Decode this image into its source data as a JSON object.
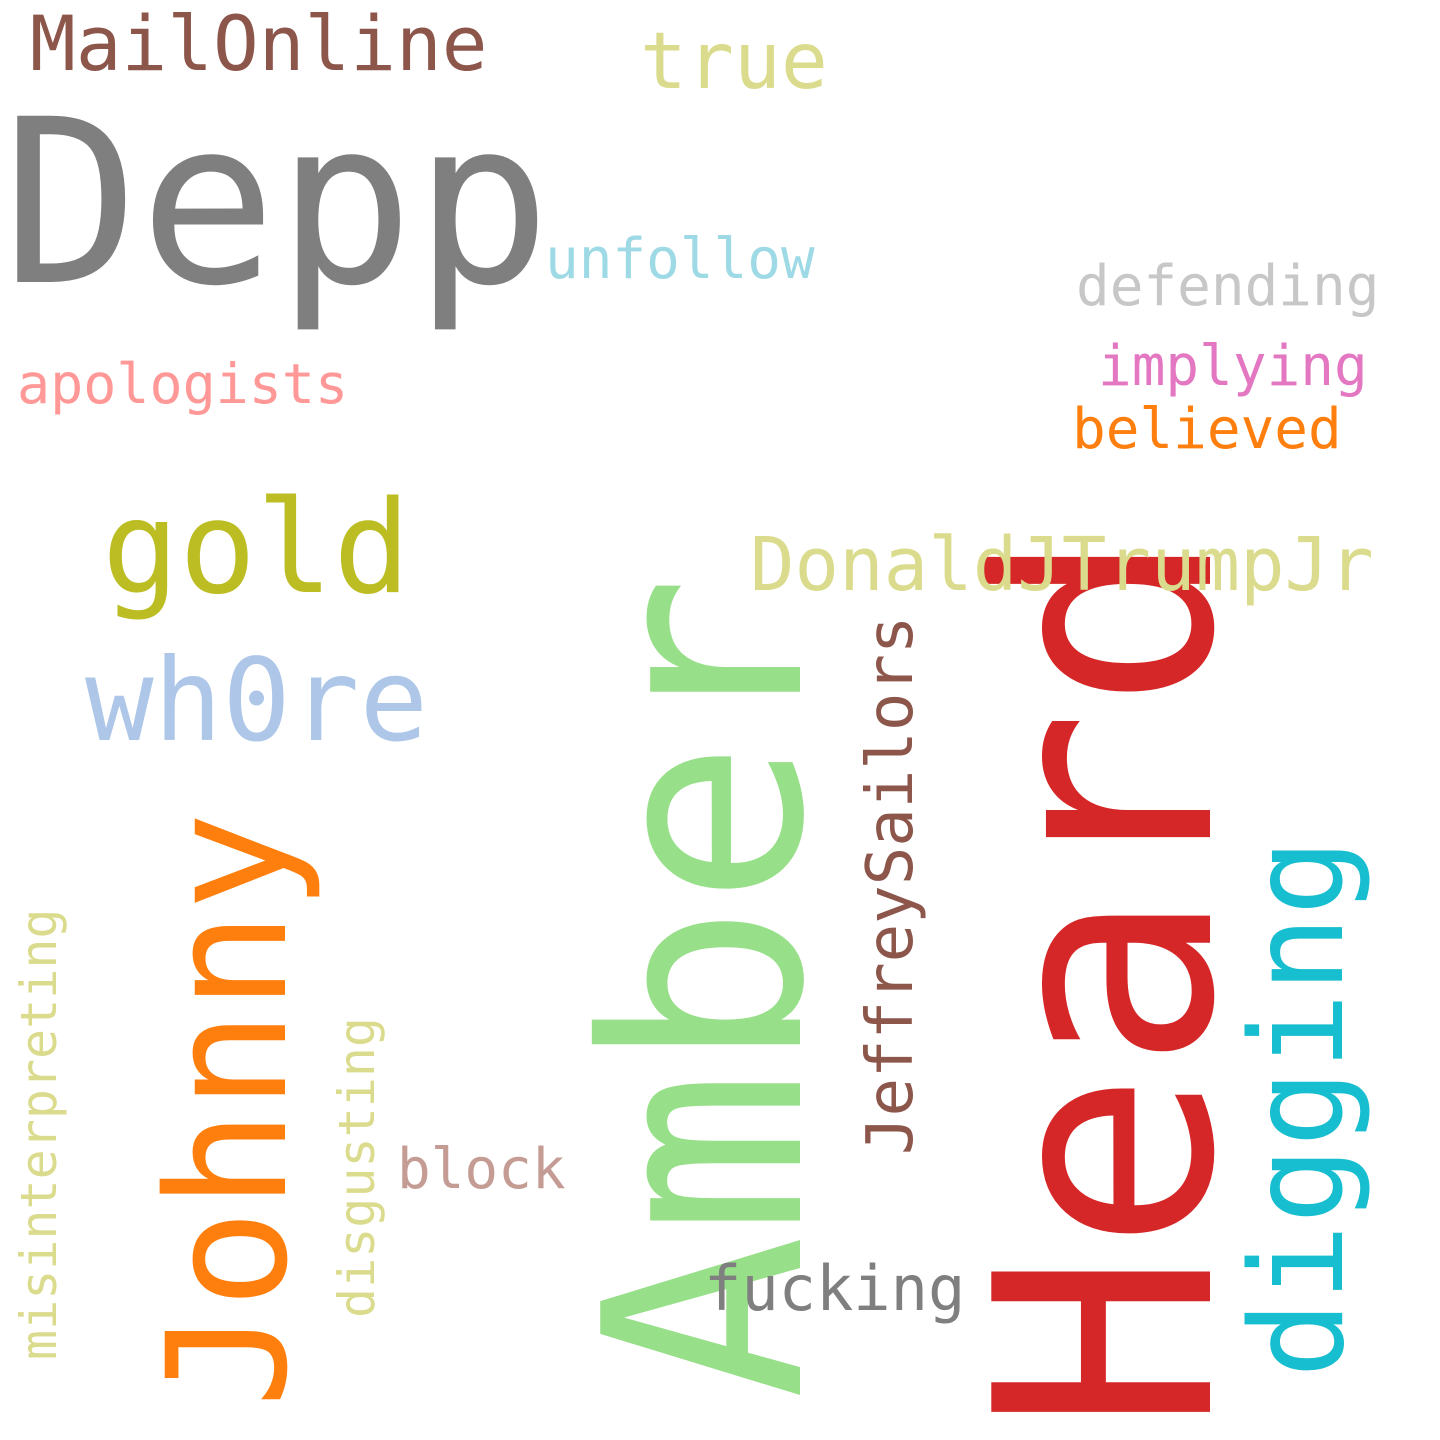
{
  "word_cloud": {
    "background": "#ffffff",
    "words": [
      {
        "text": "Heard",
        "color": "#d62728"
      },
      {
        "text": "Amber",
        "color": "#98df8a"
      },
      {
        "text": "Depp",
        "color": "#7f7f7f"
      },
      {
        "text": "Johnny",
        "color": "#ff7f0e"
      },
      {
        "text": "digging",
        "color": "#17becf"
      },
      {
        "text": "gold",
        "color": "#bcbd22"
      },
      {
        "text": "wh0re",
        "color": "#aec7e8"
      },
      {
        "text": "DonaldJTrumpJr",
        "color": "#dbdb8d"
      },
      {
        "text": "JeffreySailors",
        "color": "#8c564b"
      },
      {
        "text": "MailOnline",
        "color": "#8c564b"
      },
      {
        "text": "true",
        "color": "#dbdb8d"
      },
      {
        "text": "unfollow",
        "color": "#9edae5"
      },
      {
        "text": "defending",
        "color": "#c7c7c7"
      },
      {
        "text": "implying",
        "color": "#e377c2"
      },
      {
        "text": "believed",
        "color": "#ff7f0e"
      },
      {
        "text": "apologists",
        "color": "#ff9896"
      },
      {
        "text": "misinterpreting",
        "color": "#dbdb8d"
      },
      {
        "text": "disgusting",
        "color": "#dbdb8d"
      },
      {
        "text": "block",
        "color": "#c49c94"
      },
      {
        "text": "fucking",
        "color": "#7f7f7f"
      }
    ]
  }
}
